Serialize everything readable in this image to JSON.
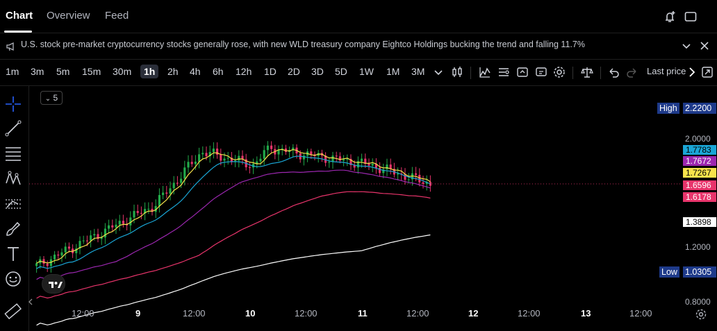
{
  "nav": {
    "tabs": [
      {
        "label": "Chart",
        "active": true
      },
      {
        "label": "Overview",
        "active": false
      },
      {
        "label": "Feed",
        "active": false
      }
    ]
  },
  "news": {
    "text": "U.S. stock pre-market cryptocurrency stocks generally rose, with new WLD treasury company Eightco Holdings bucking the trend and falling 11.7%"
  },
  "toolbar": {
    "intervals": [
      "1m",
      "3m",
      "5m",
      "15m",
      "30m",
      "1h",
      "2h",
      "4h",
      "6h",
      "12h",
      "1D",
      "2D",
      "3D",
      "5D",
      "1W",
      "1M",
      "3M"
    ],
    "active_interval": "1h",
    "last_price_label": "Last price"
  },
  "legend": {
    "collapse_label": "5"
  },
  "price_axis": {
    "labels": [
      "2.0000",
      "1.2000",
      "0.8000"
    ],
    "high_label": "High",
    "high_value": "2.2200",
    "low_label": "Low",
    "low_value": "1.0305",
    "tags": [
      {
        "value": "1.7783",
        "bg": "#1aa6d6",
        "fg": "#000000"
      },
      {
        "value": "1.7672",
        "bg": "#9c27b0",
        "fg": "#ffffff"
      },
      {
        "value": "1.7267",
        "bg": "#f7e34b",
        "fg": "#000000"
      },
      {
        "value": "1.6596",
        "bg": "#e8346b",
        "fg": "#ffffff"
      },
      {
        "value": "1.6178",
        "bg": "#e8346b",
        "fg": "#ffffff"
      },
      {
        "value": "1.3898",
        "bg": "#ffffff",
        "fg": "#000000"
      }
    ]
  },
  "time_axis": {
    "labels": [
      {
        "text": "12:00",
        "day": false
      },
      {
        "text": "9",
        "day": true
      },
      {
        "text": "12:00",
        "day": false
      },
      {
        "text": "10",
        "day": true
      },
      {
        "text": "12:00",
        "day": false
      },
      {
        "text": "11",
        "day": true
      },
      {
        "text": "12:00",
        "day": false
      },
      {
        "text": "12",
        "day": true
      },
      {
        "text": "12:00",
        "day": false
      },
      {
        "text": "13",
        "day": true
      },
      {
        "text": "12:00",
        "day": false
      }
    ]
  },
  "colors": {
    "up": "#089981",
    "up_candle": "#22ab4a",
    "down": "#e8346b",
    "ma_yellow": "#f7e34b",
    "ma_cyan": "#1aa6d6",
    "ma_purple": "#9c27b0",
    "ma_red": "#e8346b",
    "ma_white": "#ffffff",
    "high_bg": "#1e3a8a"
  }
}
